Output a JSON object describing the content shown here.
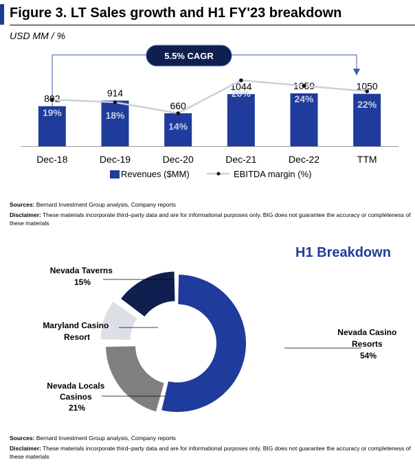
{
  "figure_title": "Figure 3. LT Sales growth and H1 FY'23 breakdown",
  "units_label": "USD MM / %",
  "cagr_label": "5.5% CAGR",
  "colors": {
    "bar": "#1f3b9c",
    "line": "#c8cfdd",
    "dark_navy": "#0f1f4f",
    "light_gray": "#dcdfe6",
    "mid_gray": "#7f7f7f",
    "title_blue": "#1f3b9c"
  },
  "notes": {
    "sources_label": "Sources:",
    "sources_text": "Bernard Investment Group analysis, Company reports",
    "disclaimer_label": "Disclaimer:",
    "disclaimer_text": "These materials incorporate third–party data and are for informational purposes only. BIG does not guarantee the accuracy or completeness of these materials"
  },
  "chart_data": [
    {
      "type": "bar",
      "categories": [
        "Dec-18",
        "Dec-19",
        "Dec-20",
        "Dec-21",
        "Dec-22",
        "TTM"
      ],
      "series": [
        {
          "name": "Revenues ($MM)",
          "type": "bar",
          "values": [
            802,
            914,
            660,
            1044,
            1059,
            1050
          ],
          "labels": [
            "802",
            "914",
            "660",
            "1044",
            "1059",
            "1050"
          ]
        },
        {
          "name": "EBITDA margin (%)",
          "type": "line",
          "values": [
            19,
            18,
            14,
            26,
            24,
            22
          ],
          "labels": [
            "19%",
            "18%",
            "14%",
            "26%",
            "24%",
            "22%"
          ]
        }
      ],
      "ylim": [
        0,
        1100
      ],
      "legend": "bottom"
    },
    {
      "type": "pie",
      "title": "H1 Breakdown",
      "slices": [
        {
          "label": "Nevada Casino Resorts",
          "name_lines": [
            "Nevada Casino",
            "Resorts"
          ],
          "pct_label": "54%",
          "value": 54
        },
        {
          "label": "Nevada Locals Casinos",
          "name_lines": [
            "Nevada Locals",
            "Casinos"
          ],
          "pct_label": "21%",
          "value": 21
        },
        {
          "label": "Maryland Casino Resort",
          "name_lines": [
            "Maryland Casino",
            "Resort"
          ],
          "pct_label": "",
          "value": 10
        },
        {
          "label": "Nevada Taverns",
          "name_lines": [
            "Nevada Taverns"
          ],
          "pct_label": "15%",
          "value": 15
        }
      ]
    }
  ]
}
